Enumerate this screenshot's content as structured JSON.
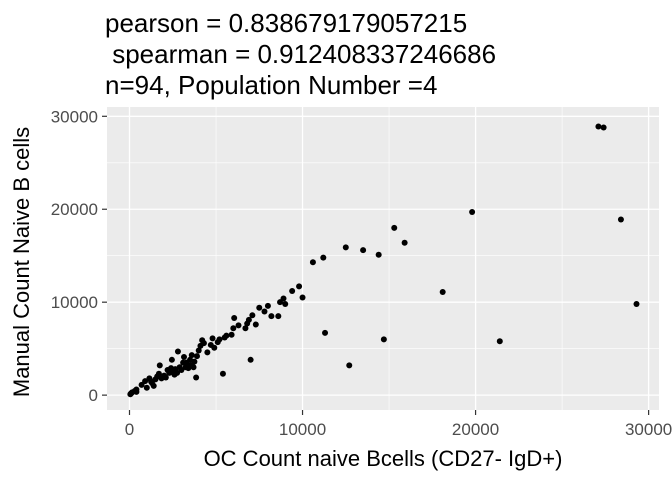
{
  "chart_data": {
    "type": "scatter",
    "title_lines": [
      "pearson = 0.838679179057215",
      " spearman = 0.912408337246686",
      "n=94, Population Number =4"
    ],
    "xlabel": "OC Count naive Bcells (CD27- IgD+)",
    "ylabel": "Manual Count Naive B cells",
    "xlim": [
      -1300,
      30600
    ],
    "ylim": [
      -1600,
      31000
    ],
    "x_ticks": [
      0,
      10000,
      20000,
      30000
    ],
    "y_ticks": [
      0,
      10000,
      20000,
      30000
    ],
    "x_tick_labels": [
      "0",
      "10000",
      "20000",
      "30000"
    ],
    "y_tick_labels": [
      "0",
      "10000",
      "20000",
      "30000"
    ],
    "panel_background": "#ebebeb",
    "grid_color": "#ffffff",
    "point_color": "#000000",
    "grid": true,
    "legend": "none",
    "points": [
      {
        "x": 50,
        "y": 100
      },
      {
        "x": 100,
        "y": 200
      },
      {
        "x": 150,
        "y": 300
      },
      {
        "x": 300,
        "y": 450
      },
      {
        "x": 400,
        "y": 600
      },
      {
        "x": 700,
        "y": 1100
      },
      {
        "x": 900,
        "y": 1500
      },
      {
        "x": 1000,
        "y": 800
      },
      {
        "x": 1150,
        "y": 1800
      },
      {
        "x": 1300,
        "y": 1300
      },
      {
        "x": 1400,
        "y": 1000
      },
      {
        "x": 1500,
        "y": 1700
      },
      {
        "x": 1600,
        "y": 2000
      },
      {
        "x": 1700,
        "y": 2300
      },
      {
        "x": 1750,
        "y": 3200
      },
      {
        "x": 1850,
        "y": 1800
      },
      {
        "x": 2000,
        "y": 2100
      },
      {
        "x": 2100,
        "y": 1900
      },
      {
        "x": 2200,
        "y": 2700
      },
      {
        "x": 2300,
        "y": 2400
      },
      {
        "x": 2400,
        "y": 2900
      },
      {
        "x": 2450,
        "y": 3800
      },
      {
        "x": 2550,
        "y": 2500
      },
      {
        "x": 2650,
        "y": 2800
      },
      {
        "x": 2750,
        "y": 2400
      },
      {
        "x": 2800,
        "y": 4700
      },
      {
        "x": 2900,
        "y": 3000
      },
      {
        "x": 3000,
        "y": 2700
      },
      {
        "x": 3100,
        "y": 3500
      },
      {
        "x": 3150,
        "y": 4100
      },
      {
        "x": 3250,
        "y": 3000
      },
      {
        "x": 3300,
        "y": 3500
      },
      {
        "x": 3400,
        "y": 2900
      },
      {
        "x": 3500,
        "y": 3800
      },
      {
        "x": 3550,
        "y": 3200
      },
      {
        "x": 3600,
        "y": 4300
      },
      {
        "x": 3700,
        "y": 3000
      },
      {
        "x": 3750,
        "y": 3600
      },
      {
        "x": 3850,
        "y": 1900
      },
      {
        "x": 3900,
        "y": 4200
      },
      {
        "x": 4000,
        "y": 4800
      },
      {
        "x": 4100,
        "y": 5300
      },
      {
        "x": 4300,
        "y": 5600
      },
      {
        "x": 4500,
        "y": 4600
      },
      {
        "x": 4700,
        "y": 5400
      },
      {
        "x": 4800,
        "y": 6100
      },
      {
        "x": 4900,
        "y": 5100
      },
      {
        "x": 5100,
        "y": 5700
      },
      {
        "x": 5200,
        "y": 6000
      },
      {
        "x": 5400,
        "y": 2300
      },
      {
        "x": 5500,
        "y": 6200
      },
      {
        "x": 5900,
        "y": 6500
      },
      {
        "x": 6000,
        "y": 7200
      },
      {
        "x": 6050,
        "y": 8300
      },
      {
        "x": 6300,
        "y": 7500
      },
      {
        "x": 6700,
        "y": 7200
      },
      {
        "x": 6800,
        "y": 7700
      },
      {
        "x": 6900,
        "y": 8100
      },
      {
        "x": 7000,
        "y": 3800
      },
      {
        "x": 7100,
        "y": 8600
      },
      {
        "x": 7300,
        "y": 7600
      },
      {
        "x": 7500,
        "y": 9400
      },
      {
        "x": 7800,
        "y": 9000
      },
      {
        "x": 8000,
        "y": 9600
      },
      {
        "x": 8200,
        "y": 8500
      },
      {
        "x": 8600,
        "y": 8500
      },
      {
        "x": 8700,
        "y": 10000
      },
      {
        "x": 8900,
        "y": 10400
      },
      {
        "x": 9000,
        "y": 9800
      },
      {
        "x": 9400,
        "y": 11200
      },
      {
        "x": 9800,
        "y": 11700
      },
      {
        "x": 10000,
        "y": 10500
      },
      {
        "x": 10600,
        "y": 14300
      },
      {
        "x": 11200,
        "y": 14800
      },
      {
        "x": 11300,
        "y": 6700
      },
      {
        "x": 12500,
        "y": 15900
      },
      {
        "x": 12700,
        "y": 3200
      },
      {
        "x": 13500,
        "y": 15600
      },
      {
        "x": 14400,
        "y": 15100
      },
      {
        "x": 14700,
        "y": 6000
      },
      {
        "x": 15300,
        "y": 18000
      },
      {
        "x": 15900,
        "y": 16400
      },
      {
        "x": 18100,
        "y": 11100
      },
      {
        "x": 19800,
        "y": 19700
      },
      {
        "x": 21400,
        "y": 5800
      },
      {
        "x": 27100,
        "y": 28900
      },
      {
        "x": 27400,
        "y": 28800
      },
      {
        "x": 28400,
        "y": 18900
      },
      {
        "x": 29300,
        "y": 9800
      },
      {
        "x": 400,
        "y": 350
      },
      {
        "x": 1250,
        "y": 1450
      },
      {
        "x": 2600,
        "y": 2200
      },
      {
        "x": 4200,
        "y": 5900
      },
      {
        "x": 5600,
        "y": 6400
      }
    ]
  }
}
